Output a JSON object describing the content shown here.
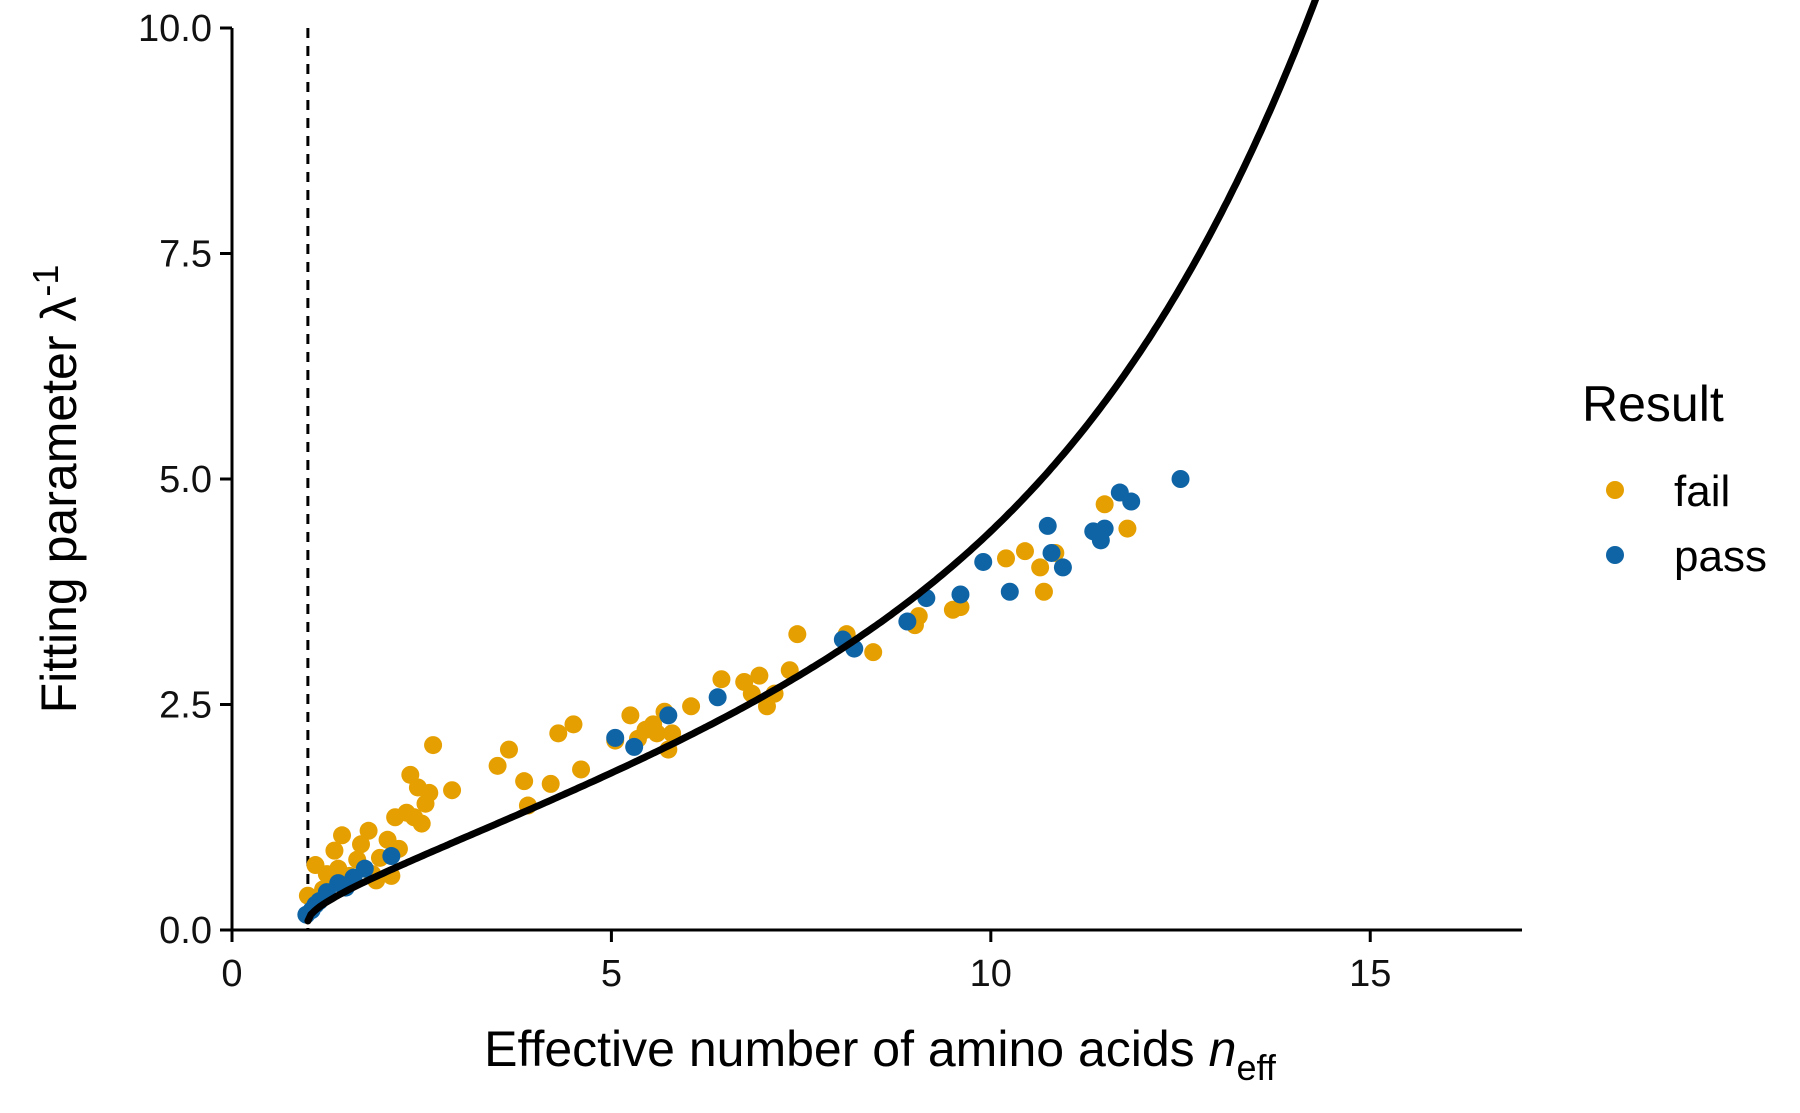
{
  "chart_data": {
    "type": "scatter",
    "xlabel": "Effective number of amino acids",
    "xlabel_italic": "n",
    "xlabel_sub": "eff",
    "ylabel": "Fitting parameter λ",
    "ylabel_sup": "-1",
    "xlim": [
      0,
      17
    ],
    "ylim": [
      0,
      10
    ],
    "x_ticks": [
      0,
      5,
      10,
      15
    ],
    "x_tick_labels": [
      "0",
      "5",
      "10",
      "15"
    ],
    "y_ticks": [
      0,
      2.5,
      5,
      7.5,
      10
    ],
    "y_tick_labels": [
      "0.0",
      "2.5",
      "5.0",
      "7.5",
      "10.0"
    ],
    "grid": false,
    "reference_line": {
      "x": 1,
      "style": "dashed"
    },
    "legend": {
      "title": "Result",
      "placement": "right",
      "entries": [
        {
          "label": "fail",
          "color": "#E69F00"
        },
        {
          "label": "pass",
          "color": "#0F64A5"
        }
      ]
    },
    "series": [
      {
        "name": "fail",
        "color": "#E69F00",
        "points": [
          [
            1.0,
            0.38
          ],
          [
            1.1,
            0.72
          ],
          [
            1.2,
            0.45
          ],
          [
            1.25,
            0.62
          ],
          [
            1.3,
            0.55
          ],
          [
            1.35,
            0.88
          ],
          [
            1.4,
            0.68
          ],
          [
            1.45,
            1.05
          ],
          [
            1.55,
            0.6
          ],
          [
            1.65,
            0.78
          ],
          [
            1.7,
            0.95
          ],
          [
            1.8,
            1.1
          ],
          [
            1.85,
            0.62
          ],
          [
            1.9,
            0.55
          ],
          [
            1.95,
            0.8
          ],
          [
            2.05,
            1.0
          ],
          [
            2.1,
            0.6
          ],
          [
            2.15,
            1.25
          ],
          [
            2.2,
            0.9
          ],
          [
            2.3,
            1.3
          ],
          [
            2.35,
            1.72
          ],
          [
            2.4,
            1.25
          ],
          [
            2.45,
            1.58
          ],
          [
            2.5,
            1.18
          ],
          [
            2.55,
            1.4
          ],
          [
            2.6,
            1.52
          ],
          [
            2.65,
            2.05
          ],
          [
            2.9,
            1.55
          ],
          [
            3.5,
            1.82
          ],
          [
            3.65,
            2.0
          ],
          [
            3.85,
            1.65
          ],
          [
            3.9,
            1.38
          ],
          [
            4.2,
            1.62
          ],
          [
            4.3,
            2.18
          ],
          [
            4.5,
            2.28
          ],
          [
            4.6,
            1.78
          ],
          [
            5.05,
            2.1
          ],
          [
            5.25,
            2.38
          ],
          [
            5.35,
            2.12
          ],
          [
            5.45,
            2.22
          ],
          [
            5.55,
            2.28
          ],
          [
            5.6,
            2.18
          ],
          [
            5.7,
            2.42
          ],
          [
            5.75,
            2.0
          ],
          [
            5.8,
            2.18
          ],
          [
            6.05,
            2.48
          ],
          [
            6.45,
            2.78
          ],
          [
            6.75,
            2.75
          ],
          [
            6.85,
            2.62
          ],
          [
            6.95,
            2.82
          ],
          [
            7.05,
            2.48
          ],
          [
            7.15,
            2.62
          ],
          [
            7.35,
            2.88
          ],
          [
            7.45,
            3.28
          ],
          [
            8.1,
            3.28
          ],
          [
            8.45,
            3.08
          ],
          [
            9.0,
            3.38
          ],
          [
            9.05,
            3.48
          ],
          [
            9.5,
            3.55
          ],
          [
            9.6,
            3.58
          ],
          [
            10.2,
            4.12
          ],
          [
            10.45,
            4.2
          ],
          [
            10.65,
            4.02
          ],
          [
            10.7,
            3.75
          ],
          [
            10.85,
            4.18
          ],
          [
            11.5,
            4.72
          ],
          [
            11.8,
            4.45
          ]
        ]
      },
      {
        "name": "pass",
        "color": "#0F64A5",
        "points": [
          [
            0.98,
            0.17
          ],
          [
            1.05,
            0.22
          ],
          [
            1.1,
            0.28
          ],
          [
            1.15,
            0.32
          ],
          [
            1.25,
            0.42
          ],
          [
            1.4,
            0.52
          ],
          [
            1.5,
            0.47
          ],
          [
            1.6,
            0.58
          ],
          [
            1.75,
            0.68
          ],
          [
            2.1,
            0.82
          ],
          [
            5.05,
            2.13
          ],
          [
            5.3,
            2.03
          ],
          [
            5.75,
            2.38
          ],
          [
            6.4,
            2.58
          ],
          [
            8.05,
            3.22
          ],
          [
            8.2,
            3.12
          ],
          [
            8.9,
            3.42
          ],
          [
            9.15,
            3.68
          ],
          [
            9.6,
            3.72
          ],
          [
            9.9,
            4.08
          ],
          [
            10.25,
            3.75
          ],
          [
            10.75,
            4.48
          ],
          [
            10.8,
            4.18
          ],
          [
            10.95,
            4.02
          ],
          [
            11.35,
            4.42
          ],
          [
            11.45,
            4.32
          ],
          [
            11.5,
            4.45
          ],
          [
            11.7,
            4.85
          ],
          [
            11.85,
            4.75
          ],
          [
            12.5,
            5.0
          ]
        ]
      }
    ]
  }
}
